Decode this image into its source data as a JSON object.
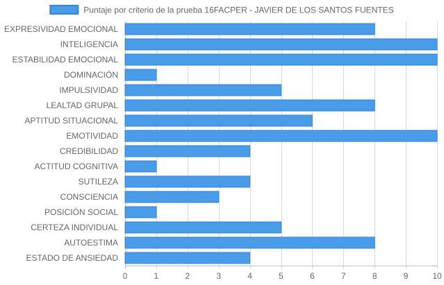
{
  "chart_data": {
    "type": "bar",
    "orientation": "horizontal",
    "categories": [
      "EXPRESIVIDAD EMOCIONAL",
      "INTELIGENCIA",
      "ESTABILIDAD EMOCIONAL",
      "DOMINACIÓN",
      "IMPULSIVIDAD",
      "LEALTAD GRUPAL",
      "APTITUD SITUACIONAL",
      "EMOTIVIDAD",
      "CREDIBILIDAD",
      "ACTITUD COGNITIVA",
      "SUTILEZA",
      "CONSCIENCIA",
      "POSICIÓN SOCIAL",
      "CERTEZA INDIVIDUAL",
      "AUTOESTIMA",
      "ESTADO DE ANSIEDAD"
    ],
    "series": [
      {
        "name": "Puntaje por criterio de la prueba 16FACPER - JAVIER DE LOS SANTOS FUENTES",
        "values": [
          8,
          10,
          10,
          1,
          5,
          8,
          6,
          10,
          4,
          1,
          4,
          3,
          1,
          5,
          8,
          4
        ],
        "color": "#4a9be8",
        "border_color": "#2f86de"
      }
    ],
    "xlim": [
      0,
      10
    ],
    "x_ticks": [
      0,
      1,
      2,
      3,
      4,
      5,
      6,
      7,
      8,
      9,
      10
    ],
    "grid": true,
    "legend": "top-center",
    "title": "",
    "xlabel": "",
    "ylabel": ""
  }
}
